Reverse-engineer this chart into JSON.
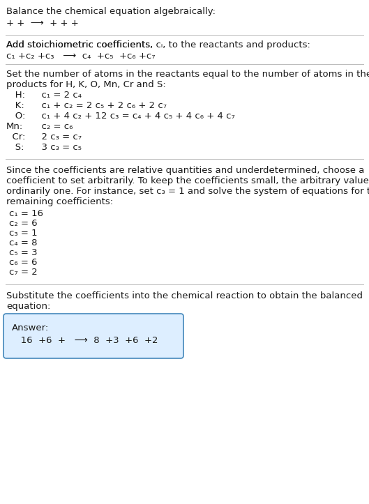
{
  "bg_color": "#ffffff",
  "text_color": "#1a1a1a",
  "line_color": "#bbbbbb",
  "box_bg_color": "#ddeeff",
  "box_border_color": "#4488bb",
  "title": "Balance the chemical equation algebraically:",
  "line1": "+ +  ⟶  + + +",
  "section1_title_plain": "Add stoichiometric coefficients, ",
  "section1_title_italic": "c",
  "section1_title_sub": "i",
  "section1_title_end": ", to the reactants and products:",
  "section1_eq": "c₁ +c₂ +c₃   ⟶  c₄  +c₅  +c₆ +c₇",
  "section2_title": "Set the number of atoms in the reactants equal to the number of atoms in the\nproducts for H, K, O, Mn, Cr and S:",
  "equations": [
    [
      "   H:",
      "  c₁ = 2 c₄"
    ],
    [
      "   K:",
      "  c₁ + c₂ = 2 c₅ + 2 c₆ + 2 c₇"
    ],
    [
      "   O:",
      "  c₁ + 4 c₂ + 12 c₃ = c₄ + 4 c₅ + 4 c₆ + 4 c₇"
    ],
    [
      "Mn:",
      "  c₂ = c₆"
    ],
    [
      "  Cr:",
      "  2 c₃ = c₇"
    ],
    [
      "   S:",
      "  3 c₃ = c₅"
    ]
  ],
  "section3_para": "Since the coefficients are relative quantities and underdetermined, choose a\ncoefficient to set arbitrarily. To keep the coefficients small, the arbitrary value is\nordinarily one. For instance, set c₃ = 1 and solve the system of equations for the\nremaining coefficients:",
  "coefficients": [
    "c₁ = 16",
    "c₂ = 6",
    "c₃ = 1",
    "c₄ = 8",
    "c₅ = 3",
    "c₆ = 6",
    "c₇ = 2"
  ],
  "section4_para": "Substitute the coefficients into the chemical reaction to obtain the balanced\nequation:",
  "answer_label": "Answer:",
  "answer_eq": "   16  +6  +   ⟶  8  +3  +6  +2"
}
